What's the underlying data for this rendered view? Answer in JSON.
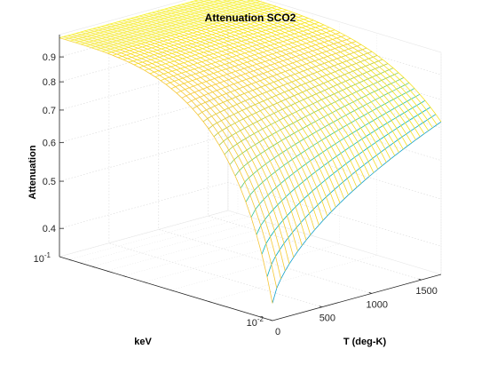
{
  "chart_data": {
    "type": "surface",
    "title": "Attenuation SCO2",
    "xlabel": "T (deg-K)",
    "ylabel": "keV",
    "zlabel": "Attenuation",
    "x_ticks": [
      "0",
      "500",
      "1000",
      "1500"
    ],
    "x_lim": [
      0,
      1700
    ],
    "y_ticks": [
      "10^-2",
      "10^-1"
    ],
    "y_scale": "log",
    "y_lim": [
      0.01,
      0.1
    ],
    "z_ticks": [
      "0.4",
      "0.5",
      "0.6",
      "0.7",
      "0.8",
      "0.9"
    ],
    "z_lim": [
      0.35,
      1.0
    ],
    "z_scale": "log",
    "colormap": "parula",
    "grid": true,
    "surface_samples": [
      {
        "T": 0,
        "keV": 0.01,
        "attenuation": 0.38
      },
      {
        "T": 1700,
        "keV": 0.01,
        "attenuation": 0.72
      },
      {
        "T": 0,
        "keV": 0.1,
        "attenuation": 0.98
      },
      {
        "T": 1700,
        "keV": 0.1,
        "attenuation": 0.99
      }
    ]
  }
}
